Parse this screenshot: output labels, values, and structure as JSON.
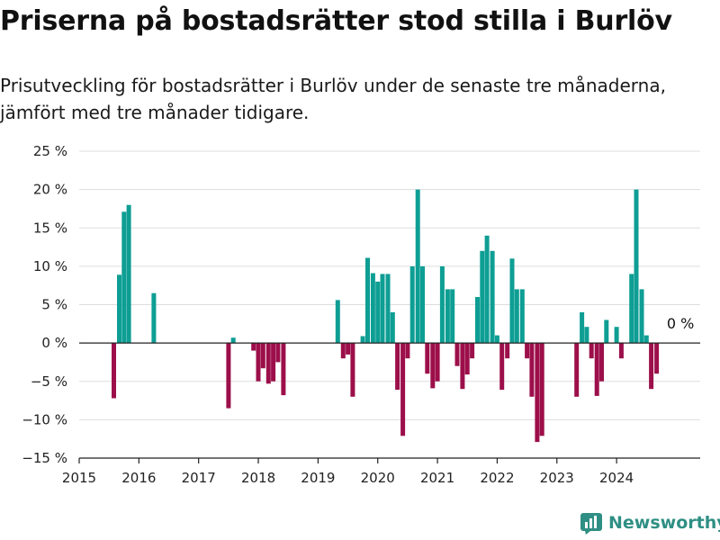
{
  "title": "Priserna på bostadsrätter stod stilla i Burlöv",
  "subtitle": "Prisutveckling för bostadsrätter i Burlöv under de senaste tre månaderna, jämfört med tre månader tidigare.",
  "brand": {
    "name": "Newsworthy",
    "icon": "newsworthy-logo-icon"
  },
  "colors": {
    "positive": "#0e9e94",
    "negative": "#9c0f4a",
    "grid": "#dddddd",
    "axis": "#222222"
  },
  "chart_data": {
    "type": "bar",
    "xlim": [
      2015,
      2025.4
    ],
    "ylim": [
      -15,
      25
    ],
    "y_ticks": [
      25,
      20,
      15,
      10,
      5,
      0,
      -5,
      -10,
      -15
    ],
    "y_tick_labels": [
      "25 %",
      "20 %",
      "15 %",
      "10 %",
      "5 %",
      "0 %",
      "−5 %",
      "−10 %",
      "−15 %"
    ],
    "x_ticks": [
      "2015",
      "2016",
      "2017",
      "2018",
      "2019",
      "2020",
      "2021",
      "2022",
      "2023",
      "2024"
    ],
    "grid": true,
    "annotation": "0 %",
    "x": [
      2015.58,
      2015.67,
      2015.75,
      2015.83,
      2016.25,
      2017.5,
      2017.58,
      2017.92,
      2018.0,
      2018.08,
      2018.17,
      2018.25,
      2018.33,
      2018.42,
      2019.33,
      2019.42,
      2019.5,
      2019.58,
      2019.75,
      2019.83,
      2019.92,
      2020.0,
      2020.08,
      2020.17,
      2020.25,
      2020.33,
      2020.42,
      2020.5,
      2020.58,
      2020.67,
      2020.75,
      2020.83,
      2020.92,
      2021.0,
      2021.08,
      2021.17,
      2021.25,
      2021.33,
      2021.42,
      2021.5,
      2021.58,
      2021.67,
      2021.75,
      2021.83,
      2021.92,
      2022.0,
      2022.08,
      2022.17,
      2022.25,
      2022.33,
      2022.42,
      2022.5,
      2022.58,
      2022.67,
      2022.75,
      2022.83,
      2023.33,
      2023.42,
      2023.5,
      2023.58,
      2023.67,
      2023.75,
      2023.83,
      2024.0,
      2024.08,
      2024.25,
      2024.33,
      2024.42,
      2024.5,
      2024.58,
      2024.67,
      2024.75
    ],
    "values": [
      -7.2,
      8.9,
      17.1,
      18.0,
      6.5,
      -8.5,
      0.7,
      -1.0,
      -5.0,
      -3.3,
      -5.3,
      -5.0,
      -2.5,
      -6.8,
      5.6,
      -2.0,
      -1.5,
      -7.0,
      0.9,
      11.1,
      9.1,
      8.0,
      9.0,
      9.0,
      4.0,
      -6.1,
      -12.1,
      -2.0,
      10.0,
      20.0,
      10.0,
      -4.0,
      -5.9,
      -5.0,
      10.0,
      7.0,
      7.0,
      -3.0,
      -6.0,
      -4.1,
      -2.0,
      6.0,
      12.0,
      14.0,
      12.0,
      1.0,
      -6.1,
      -2.0,
      11.0,
      7.0,
      7.0,
      -2.0,
      -7.0,
      -12.9,
      -12.1,
      0.0,
      -7.0,
      4.0,
      2.1,
      -2.0,
      -6.9,
      -5.0,
      3.0,
      2.1,
      -2.0,
      9.0,
      20.0,
      7.0,
      1.0,
      -6.0,
      -4.0,
      0.0
    ]
  }
}
